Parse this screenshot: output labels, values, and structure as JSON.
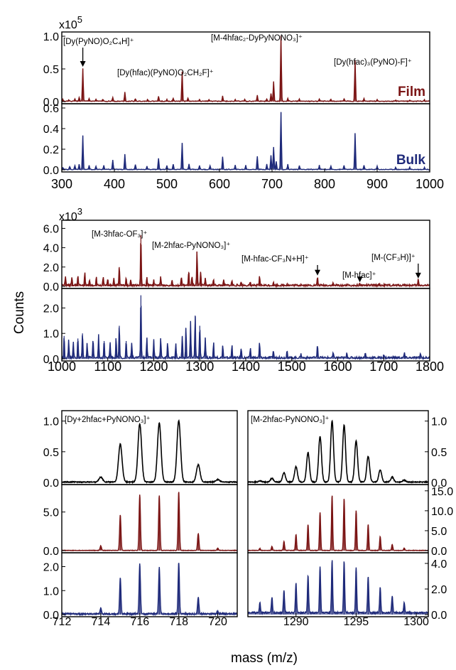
{
  "figure": {
    "ylabel": "Counts",
    "xlabel": "mass (m/z)"
  },
  "chart_data": [
    {
      "id": "top",
      "type": "line",
      "exponent": "x10^5",
      "xlim": [
        300,
        1000
      ],
      "xticks": [
        300,
        400,
        500,
        600,
        700,
        800,
        900,
        1000
      ],
      "series": [
        {
          "name": "Film",
          "color": "#7b1515",
          "ylim": [
            0,
            1.0
          ],
          "yticks": [
            "0.0",
            "0.5",
            "1.0"
          ],
          "peaks": [
            [
              302,
              0.03
            ],
            [
              313,
              0.02
            ],
            [
              325,
              0.04
            ],
            [
              333,
              0.06
            ],
            [
              340,
              0.5
            ],
            [
              352,
              0.04
            ],
            [
              365,
              0.03
            ],
            [
              378,
              0.03
            ],
            [
              397,
              0.06
            ],
            [
              420,
              0.14
            ],
            [
              440,
              0.04
            ],
            [
              463,
              0.03
            ],
            [
              484,
              0.08
            ],
            [
              500,
              0.03
            ],
            [
              512,
              0.04
            ],
            [
              529,
              0.45
            ],
            [
              540,
              0.05
            ],
            [
              562,
              0.03
            ],
            [
              580,
              0.03
            ],
            [
              606,
              0.08
            ],
            [
              630,
              0.03
            ],
            [
              648,
              0.03
            ],
            [
              672,
              0.09
            ],
            [
              690,
              0.04
            ],
            [
              698,
              0.12
            ],
            [
              703,
              0.3
            ],
            [
              717,
              1.0
            ],
            [
              730,
              0.04
            ],
            [
              752,
              0.03
            ],
            [
              790,
              0.03
            ],
            [
              812,
              0.03
            ],
            [
              837,
              0.04
            ],
            [
              858,
              0.63
            ],
            [
              875,
              0.04
            ],
            [
              900,
              0.03
            ],
            [
              935,
              0.02
            ],
            [
              962,
              0.02
            ],
            [
              990,
              0.02
            ]
          ],
          "annotations": [
            {
              "text": "[Dy(PyNO)O₂C₄H]⁺",
              "x": 340,
              "arrow": true
            },
            {
              "text": "[Dy(hfac)(PyNO)O₂CH₂F]⁺",
              "x": 529,
              "arrow": false
            },
            {
              "text": "[M-4hfac₂-DyPyNONO₃]⁺",
              "x": 717,
              "arrow": false
            },
            {
              "text": "[Dy(hfac)₃(PyNO)-F]⁺",
              "x": 858,
              "arrow": false
            }
          ]
        },
        {
          "name": "Bulk",
          "color": "#1f2a7a",
          "ylim": [
            0,
            0.6
          ],
          "yticks": [
            "0.0",
            "0.2",
            "0.4",
            "0.6"
          ],
          "peaks": [
            [
              302,
              0.02
            ],
            [
              315,
              0.03
            ],
            [
              325,
              0.04
            ],
            [
              333,
              0.05
            ],
            [
              340,
              0.33
            ],
            [
              352,
              0.04
            ],
            [
              365,
              0.03
            ],
            [
              380,
              0.04
            ],
            [
              397,
              0.09
            ],
            [
              420,
              0.15
            ],
            [
              440,
              0.05
            ],
            [
              462,
              0.03
            ],
            [
              484,
              0.11
            ],
            [
              500,
              0.04
            ],
            [
              512,
              0.05
            ],
            [
              529,
              0.26
            ],
            [
              542,
              0.05
            ],
            [
              562,
              0.04
            ],
            [
              582,
              0.04
            ],
            [
              606,
              0.12
            ],
            [
              630,
              0.04
            ],
            [
              650,
              0.04
            ],
            [
              672,
              0.13
            ],
            [
              690,
              0.05
            ],
            [
              698,
              0.14
            ],
            [
              703,
              0.22
            ],
            [
              708,
              0.08
            ],
            [
              717,
              0.56
            ],
            [
              730,
              0.05
            ],
            [
              752,
              0.04
            ],
            [
              790,
              0.04
            ],
            [
              812,
              0.03
            ],
            [
              837,
              0.04
            ],
            [
              858,
              0.35
            ],
            [
              875,
              0.04
            ],
            [
              900,
              0.03
            ],
            [
              935,
              0.02
            ],
            [
              962,
              0.02
            ],
            [
              990,
              0.02
            ]
          ]
        }
      ]
    },
    {
      "id": "middle",
      "type": "line",
      "exponent": "x10^3",
      "xlim": [
        1000,
        1800
      ],
      "xticks": [
        1000,
        1100,
        1200,
        1300,
        1400,
        1500,
        1600,
        1700,
        1800
      ],
      "series": [
        {
          "name": "",
          "color": "#7b1515",
          "ylim": [
            0,
            6.4
          ],
          "yticks": [
            "0.0",
            "2.0",
            "4.0",
            "6.0"
          ],
          "peaks": [
            [
              1008,
              1.0
            ],
            [
              1022,
              0.8
            ],
            [
              1035,
              1.0
            ],
            [
              1050,
              1.3
            ],
            [
              1060,
              0.6
            ],
            [
              1075,
              0.9
            ],
            [
              1090,
              0.8
            ],
            [
              1100,
              0.6
            ],
            [
              1113,
              0.8
            ],
            [
              1125,
              2.0
            ],
            [
              1140,
              0.8
            ],
            [
              1150,
              0.6
            ],
            [
              1172,
              5.3
            ],
            [
              1185,
              0.8
            ],
            [
              1200,
              0.7
            ],
            [
              1215,
              0.9
            ],
            [
              1240,
              0.6
            ],
            [
              1260,
              0.9
            ],
            [
              1276,
              1.5
            ],
            [
              1283,
              0.9
            ],
            [
              1294,
              3.6
            ],
            [
              1302,
              1.4
            ],
            [
              1312,
              0.8
            ],
            [
              1330,
              0.6
            ],
            [
              1352,
              0.5
            ],
            [
              1370,
              0.5
            ],
            [
              1390,
              0.4
            ],
            [
              1410,
              0.3
            ],
            [
              1430,
              0.9
            ],
            [
              1460,
              0.3
            ],
            [
              1490,
              0.2
            ],
            [
              1520,
              0.2
            ],
            [
              1556,
              0.9
            ],
            [
              1590,
              0.2
            ],
            [
              1620,
              0.15
            ],
            [
              1648,
              0.2
            ],
            [
              1690,
              0.1
            ],
            [
              1745,
              0.2
            ],
            [
              1775,
              0.6
            ]
          ],
          "annotations": [
            {
              "text": "[M-3hfac-OF₃]⁺",
              "x": 1172,
              "arrow": false
            },
            {
              "text": "[M-2hfac-PyNONO₃]⁺",
              "x": 1294,
              "arrow": false
            },
            {
              "text": "[M-hfac-CF₃N+H]⁺",
              "x": 1556,
              "arrow": true
            },
            {
              "text": "[M-hfac]⁺",
              "x": 1648,
              "arrow": true
            },
            {
              "text": "[M-(CF₃H)]⁺",
              "x": 1775,
              "arrow": true
            }
          ]
        },
        {
          "name": "",
          "color": "#1f2a7a",
          "ylim": [
            0,
            2.6
          ],
          "yticks": [
            "0.0",
            "1.0",
            "2.0"
          ],
          "peaks": [
            [
              1005,
              0.9
            ],
            [
              1015,
              0.7
            ],
            [
              1025,
              0.6
            ],
            [
              1035,
              0.8
            ],
            [
              1045,
              1.0
            ],
            [
              1055,
              0.6
            ],
            [
              1068,
              0.7
            ],
            [
              1080,
              0.9
            ],
            [
              1092,
              0.7
            ],
            [
              1105,
              0.6
            ],
            [
              1118,
              0.8
            ],
            [
              1125,
              1.3
            ],
            [
              1140,
              0.7
            ],
            [
              1152,
              0.6
            ],
            [
              1172,
              2.5
            ],
            [
              1185,
              0.8
            ],
            [
              1200,
              0.7
            ],
            [
              1215,
              0.8
            ],
            [
              1230,
              0.6
            ],
            [
              1248,
              0.6
            ],
            [
              1262,
              0.9
            ],
            [
              1270,
              1.2
            ],
            [
              1280,
              1.4
            ],
            [
              1290,
              1.7
            ],
            [
              1300,
              1.3
            ],
            [
              1312,
              0.8
            ],
            [
              1330,
              0.6
            ],
            [
              1350,
              0.5
            ],
            [
              1370,
              0.5
            ],
            [
              1390,
              0.4
            ],
            [
              1410,
              0.4
            ],
            [
              1430,
              0.6
            ],
            [
              1460,
              0.3
            ],
            [
              1490,
              0.3
            ],
            [
              1520,
              0.2
            ],
            [
              1556,
              0.5
            ],
            [
              1590,
              0.2
            ],
            [
              1620,
              0.2
            ],
            [
              1660,
              0.2
            ],
            [
              1700,
              0.15
            ],
            [
              1745,
              0.2
            ],
            [
              1780,
              0.2
            ]
          ]
        }
      ]
    },
    {
      "id": "bottom-left",
      "type": "line",
      "xlim": [
        712,
        721
      ],
      "xticks": [
        712,
        714,
        716,
        718,
        720
      ],
      "series": [
        {
          "name": "",
          "color": "#000000",
          "ylim": [
            0,
            1.1
          ],
          "yticks": [
            "0.0",
            "0.5",
            "1.0"
          ],
          "peaks": [
            [
              714,
              0.08
            ],
            [
              715,
              0.62
            ],
            [
              716,
              0.95
            ],
            [
              717,
              0.96
            ],
            [
              718,
              1.0
            ],
            [
              719,
              0.28
            ],
            [
              720,
              0.04
            ]
          ],
          "annotations": [
            {
              "text": "[Dy+2hfac+PyNONO₃]⁺",
              "x": 712.5,
              "arrow": false
            }
          ]
        },
        {
          "name": "",
          "color": "#7b1515",
          "ylim": [
            0,
            8.0
          ],
          "yticks": [
            "0.0",
            "5.0"
          ],
          "peaks": [
            [
              714,
              0.6
            ],
            [
              715,
              4.6
            ],
            [
              716,
              7.2
            ],
            [
              717,
              7.1
            ],
            [
              718,
              7.6
            ],
            [
              719,
              2.2
            ],
            [
              720,
              0.3
            ]
          ]
        },
        {
          "name": "",
          "color": "#1f2a7a",
          "ylim": [
            0,
            2.4
          ],
          "yticks": [
            "0.0",
            "1.0",
            "2.0"
          ],
          "peaks": [
            [
              714,
              0.25
            ],
            [
              715,
              1.5
            ],
            [
              716,
              2.1
            ],
            [
              717,
              1.95
            ],
            [
              718,
              2.15
            ],
            [
              719,
              0.7
            ],
            [
              720,
              0.12
            ]
          ]
        }
      ]
    },
    {
      "id": "bottom-right",
      "type": "line",
      "xlim": [
        1286,
        1301
      ],
      "xticks": [
        1290,
        1295,
        1300
      ],
      "series": [
        {
          "name": "",
          "color": "#000000",
          "ylim": [
            0,
            1.1
          ],
          "yticks": [
            "0.0",
            "0.5",
            "1.0"
          ],
          "peaks": [
            [
              1287,
              0.02
            ],
            [
              1288,
              0.06
            ],
            [
              1289,
              0.15
            ],
            [
              1290,
              0.25
            ],
            [
              1291,
              0.48
            ],
            [
              1292,
              0.74
            ],
            [
              1293,
              1.0
            ],
            [
              1294,
              0.93
            ],
            [
              1295,
              0.67
            ],
            [
              1296,
              0.42
            ],
            [
              1297,
              0.2
            ],
            [
              1298,
              0.08
            ],
            [
              1299,
              0.03
            ]
          ],
          "annotations": [
            {
              "text": "[M-2hfac-PyNONO₃]⁺",
              "x": 1286.3,
              "arrow": false
            }
          ]
        },
        {
          "name": "",
          "color": "#7b1515",
          "ylim": [
            0,
            15.5
          ],
          "yticks": [
            "0.0",
            "5.0",
            "10.0",
            "15.0"
          ],
          "peaks": [
            [
              1287,
              0.5
            ],
            [
              1288,
              1.0
            ],
            [
              1289,
              2.2
            ],
            [
              1290,
              4.0
            ],
            [
              1291,
              6.5
            ],
            [
              1292,
              9.5
            ],
            [
              1293,
              13.8
            ],
            [
              1294,
              13.0
            ],
            [
              1295,
              10.0
            ],
            [
              1296,
              6.5
            ],
            [
              1297,
              3.5
            ],
            [
              1298,
              1.5
            ],
            [
              1299,
              0.6
            ]
          ]
        },
        {
          "name": "",
          "color": "#1f2a7a",
          "ylim": [
            0,
            4.5
          ],
          "yticks": [
            "0.0",
            "2.0",
            "4.0"
          ],
          "peaks": [
            [
              1287,
              0.8
            ],
            [
              1288,
              1.2
            ],
            [
              1289,
              1.7
            ],
            [
              1290,
              2.3
            ],
            [
              1291,
              2.9
            ],
            [
              1292,
              3.6
            ],
            [
              1293,
              4.1
            ],
            [
              1294,
              4.0
            ],
            [
              1295,
              3.5
            ],
            [
              1296,
              2.8
            ],
            [
              1297,
              2.0
            ],
            [
              1298,
              1.3
            ],
            [
              1299,
              0.8
            ]
          ]
        }
      ]
    }
  ]
}
